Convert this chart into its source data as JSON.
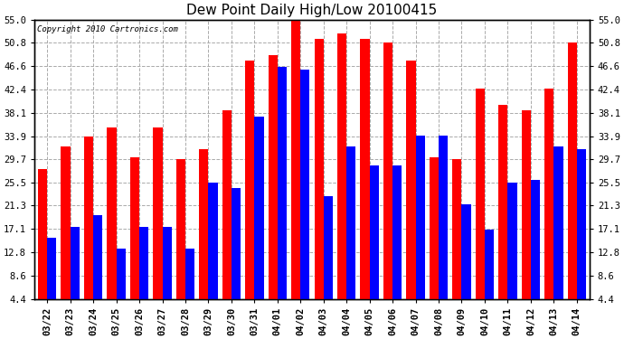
{
  "title": "Dew Point Daily High/Low 20100415",
  "copyright": "Copyright 2010 Cartronics.com",
  "categories": [
    "03/22",
    "03/23",
    "03/24",
    "03/25",
    "03/26",
    "03/27",
    "03/28",
    "03/29",
    "03/30",
    "03/31",
    "04/01",
    "04/02",
    "04/03",
    "04/04",
    "04/05",
    "04/06",
    "04/07",
    "04/08",
    "04/09",
    "04/10",
    "04/11",
    "04/12",
    "04/13",
    "04/14"
  ],
  "high_values": [
    28.0,
    32.0,
    33.9,
    35.5,
    30.0,
    35.5,
    29.7,
    31.5,
    38.5,
    47.5,
    48.5,
    55.0,
    51.5,
    52.5,
    51.5,
    50.8,
    47.5,
    30.0,
    29.7,
    42.5,
    39.5,
    38.5,
    42.5,
    50.8
  ],
  "low_values": [
    15.5,
    17.5,
    19.5,
    13.5,
    17.5,
    17.5,
    13.5,
    25.5,
    24.5,
    37.5,
    46.5,
    46.0,
    23.0,
    32.0,
    28.5,
    28.5,
    34.0,
    34.0,
    21.5,
    17.0,
    25.5,
    26.0,
    32.0,
    31.5
  ],
  "high_color": "#ff0000",
  "low_color": "#0000ff",
  "bg_color": "#ffffff",
  "grid_color": "#aaaaaa",
  "yticks": [
    4.4,
    8.6,
    12.8,
    17.1,
    21.3,
    25.5,
    29.7,
    33.9,
    38.1,
    42.4,
    46.6,
    50.8,
    55.0
  ],
  "ylim": [
    4.4,
    55.0
  ],
  "title_fontsize": 11,
  "tick_fontsize": 7.5,
  "copyright_fontsize": 6.5,
  "bar_width": 0.4
}
